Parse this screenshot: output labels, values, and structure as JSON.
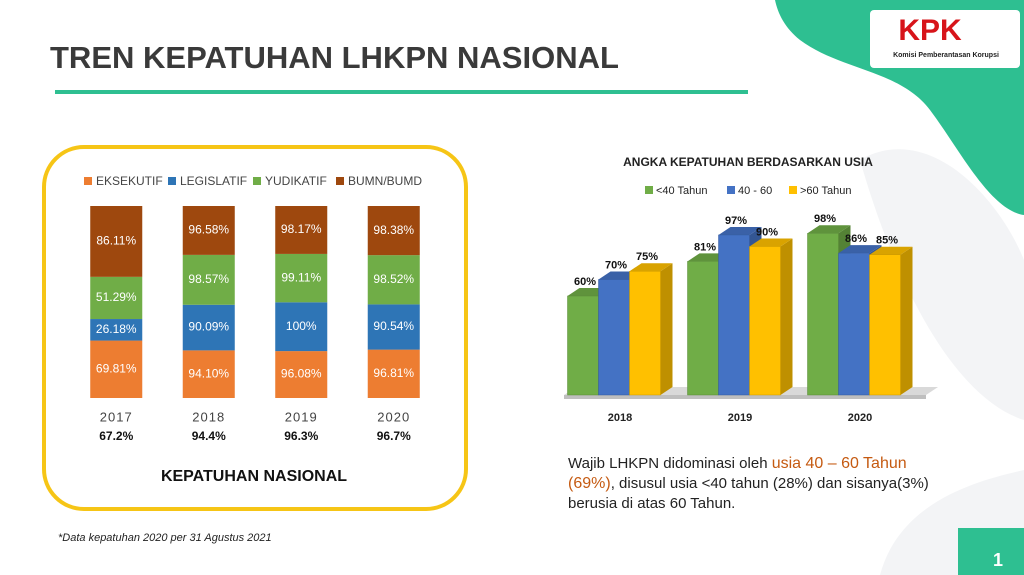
{
  "header": {
    "title": "TREN KEPATUHAN LHKPN NASIONAL"
  },
  "logo": {
    "text": "KPK",
    "subtitle": "Komisi Pemberantasan Korupsi"
  },
  "chart_data": [
    {
      "type": "bar",
      "stacked": "percent",
      "title": "KEPATUHAN NASIONAL",
      "categories": [
        "2017",
        "2018",
        "2019",
        "2020"
      ],
      "category_notes": [
        "67.2%",
        "94.4%",
        "96.3%",
        "96.7%"
      ],
      "legend": "top",
      "series": [
        {
          "name": "EKSEKUTIF",
          "color": "#ed7d31",
          "values": [
            69.81,
            94.1,
            96.08,
            96.81
          ],
          "value_labels": [
            "69.81%",
            "94.10%",
            "96.08%",
            "96.81%"
          ]
        },
        {
          "name": "LEGISLATIF",
          "color": "#2e75b6",
          "values": [
            26.18,
            90.09,
            100,
            90.54
          ],
          "value_labels": [
            "26.18%",
            "90.09%",
            "100%",
            "90.54%"
          ]
        },
        {
          "name": "YUDIKATIF",
          "color": "#70ad47",
          "values": [
            51.29,
            98.57,
            99.11,
            98.52
          ],
          "value_labels": [
            "51.29%",
            "98.57%",
            "99.11%",
            "98.52%"
          ]
        },
        {
          "name": "BUMN/BUMD",
          "color": "#9e480e",
          "values": [
            86.11,
            96.58,
            98.17,
            98.38
          ],
          "value_labels": [
            "86.11%",
            "96.58%",
            "98.17%",
            "98.38%"
          ]
        }
      ]
    },
    {
      "type": "bar",
      "depth": true,
      "title": "ANGKA KEPATUHAN BERDASARKAN USIA",
      "categories": [
        "2018",
        "2019",
        "2020"
      ],
      "legend": "top",
      "ylim": [
        0,
        100
      ],
      "series": [
        {
          "name": "<40 Tahun",
          "color": "#70ad47",
          "values": [
            60,
            81,
            98
          ],
          "value_labels": [
            "60%",
            "81%",
            "98%"
          ]
        },
        {
          "name": "40 - 60",
          "color": "#4472c4",
          "values": [
            70,
            97,
            86
          ],
          "value_labels": [
            "70%",
            "97%",
            "86%"
          ]
        },
        {
          "name": ">60 Tahun",
          "color": "#ffc000",
          "values": [
            75,
            90,
            85
          ],
          "value_labels": [
            "75%",
            "90%",
            "85%"
          ]
        }
      ]
    }
  ],
  "summary": {
    "before": "Wajib LHKPN didominasi oleh ",
    "highlight": "usia 40 – 60 Tahun (69%)",
    "after": ", disusul usia <40 tahun (28%) dan sisanya(3%) berusia di atas 60 Tahun."
  },
  "footnote": "*Data kepatuhan 2020 per 31 Agustus 2021",
  "page_number": "1"
}
